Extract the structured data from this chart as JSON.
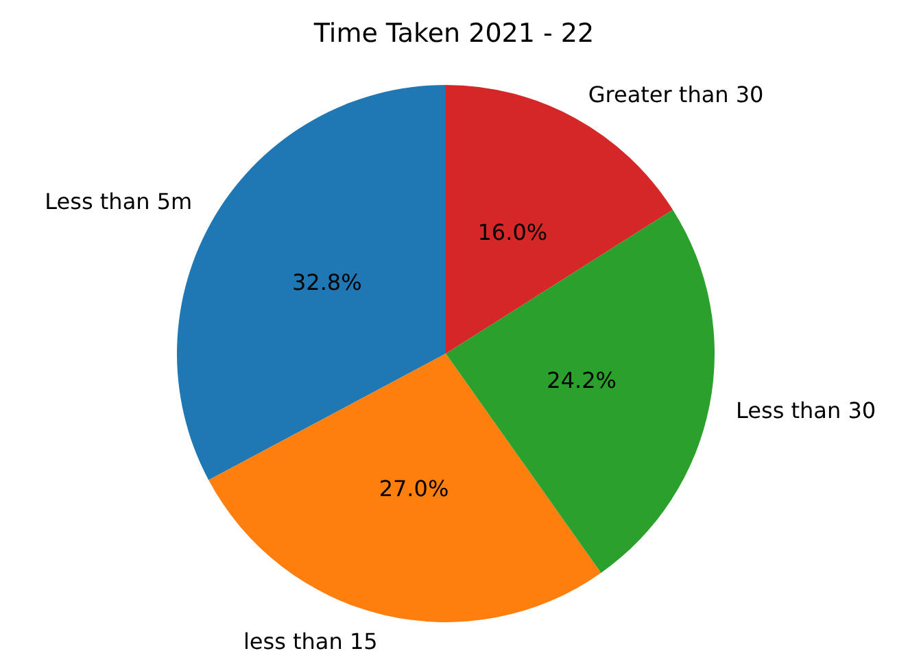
{
  "chart_data": {
    "type": "pie",
    "title": "Time Taken 2021 - 22",
    "categories": [
      "Less than 5m",
      "less than 15",
      "Less than 30",
      "Greater than 30"
    ],
    "values": [
      32.8,
      27.0,
      24.2,
      16.0
    ],
    "colors": [
      "#1f77b4",
      "#ff7f0e",
      "#2ca02c",
      "#d62728"
    ],
    "value_labels": [
      "32.8%",
      "27.0%",
      "24.2%",
      "16.0%"
    ]
  }
}
